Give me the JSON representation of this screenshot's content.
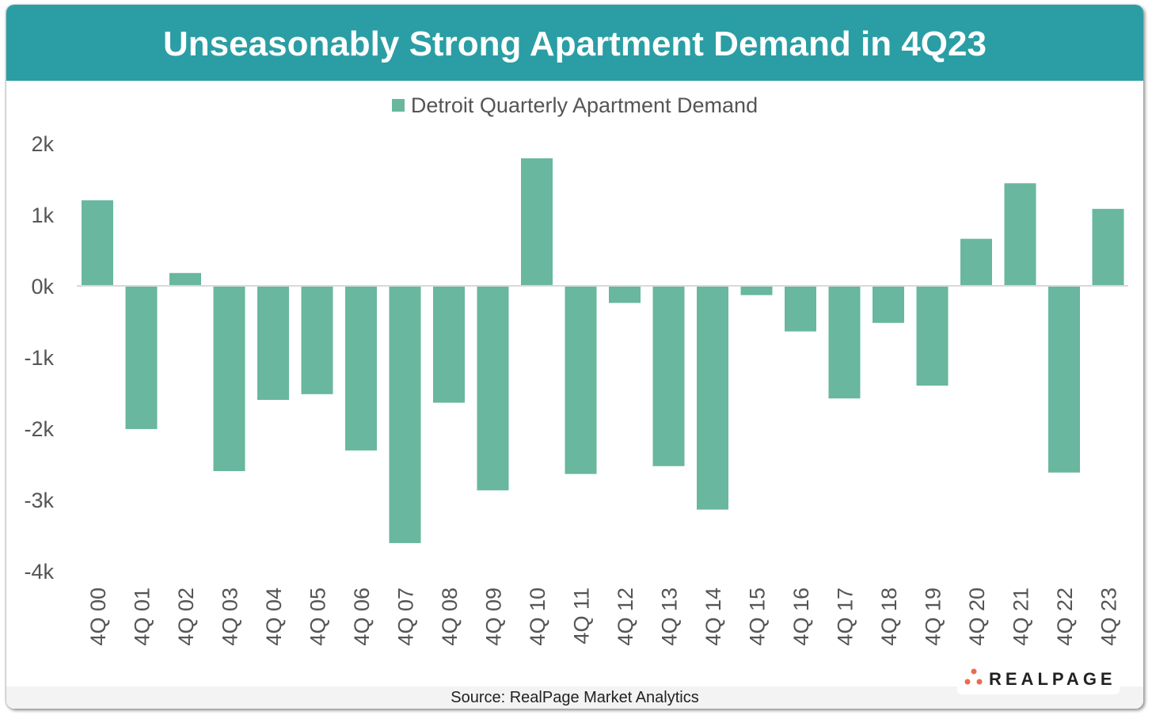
{
  "title": "Unseasonably Strong Apartment Demand in 4Q23",
  "source": "Source: RealPage Market Analytics",
  "logo_text": "REALPAGE",
  "colors": {
    "header": "#2a9ea4",
    "bar": "#68b79e",
    "logo_dots": "#ef6a4c"
  },
  "chart_data": {
    "type": "bar",
    "title": "Unseasonably Strong Apartment Demand in 4Q23",
    "legend_position": "top",
    "grid": false,
    "ylim": [
      -4000,
      2000
    ],
    "yticks": [
      2000,
      1000,
      0,
      -1000,
      -2000,
      -3000,
      -4000
    ],
    "ytick_labels": [
      "2k",
      "1k",
      "0k",
      "-1k",
      "-2k",
      "-3k",
      "-4k"
    ],
    "categories": [
      "4Q 00",
      "4Q 01",
      "4Q 02",
      "4Q 03",
      "4Q 04",
      "4Q 05",
      "4Q 06",
      "4Q 07",
      "4Q 08",
      "4Q 09",
      "4Q 10",
      "4Q 11",
      "4Q 12",
      "4Q 13",
      "4Q 14",
      "4Q 15",
      "4Q 16",
      "4Q 17",
      "4Q 18",
      "4Q 19",
      "4Q 20",
      "4Q 21",
      "4Q 22",
      "4Q 23"
    ],
    "series": [
      {
        "name": "Detroit Quarterly Apartment Demand",
        "values": [
          1200,
          -2010,
          180,
          -2600,
          -1600,
          -1520,
          -2310,
          -3610,
          -1640,
          -2870,
          1790,
          -2640,
          -240,
          -2530,
          -3140,
          -130,
          -640,
          -1580,
          -520,
          -1400,
          660,
          1440,
          -2620,
          1080
        ]
      }
    ]
  }
}
